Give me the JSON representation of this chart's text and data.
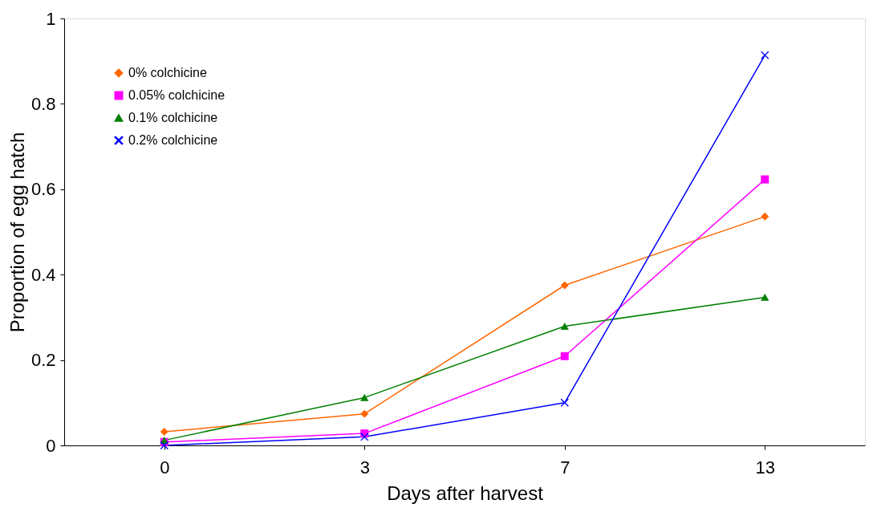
{
  "chart_data": {
    "type": "line",
    "xlabel": "Days after harvest",
    "ylabel": "Proportion of egg hatch",
    "categories": [
      "0",
      "3",
      "7",
      "13"
    ],
    "series": [
      {
        "name": "0% colchicine",
        "color": "#ff6600",
        "marker": "diamond",
        "values": [
          0.032,
          0.074,
          0.375,
          0.536
        ]
      },
      {
        "name": "0.05% colchicine",
        "color": "#ff00ff",
        "marker": "square",
        "values": [
          0.008,
          0.028,
          0.209,
          0.623
        ]
      },
      {
        "name": "0.1% colchicine",
        "color": "#008000",
        "marker": "triangle",
        "values": [
          0.012,
          0.112,
          0.279,
          0.347
        ]
      },
      {
        "name": "0.2% colchicine",
        "color": "#0000ff",
        "marker": "cross",
        "values": [
          0,
          0.02,
          0.1,
          0.914
        ]
      }
    ],
    "ylim": [
      0,
      1
    ],
    "yticks": [
      0,
      0.2,
      0.4,
      0.6,
      0.8,
      1
    ],
    "grid": false,
    "legend": "top left",
    "line_style": "solid"
  }
}
